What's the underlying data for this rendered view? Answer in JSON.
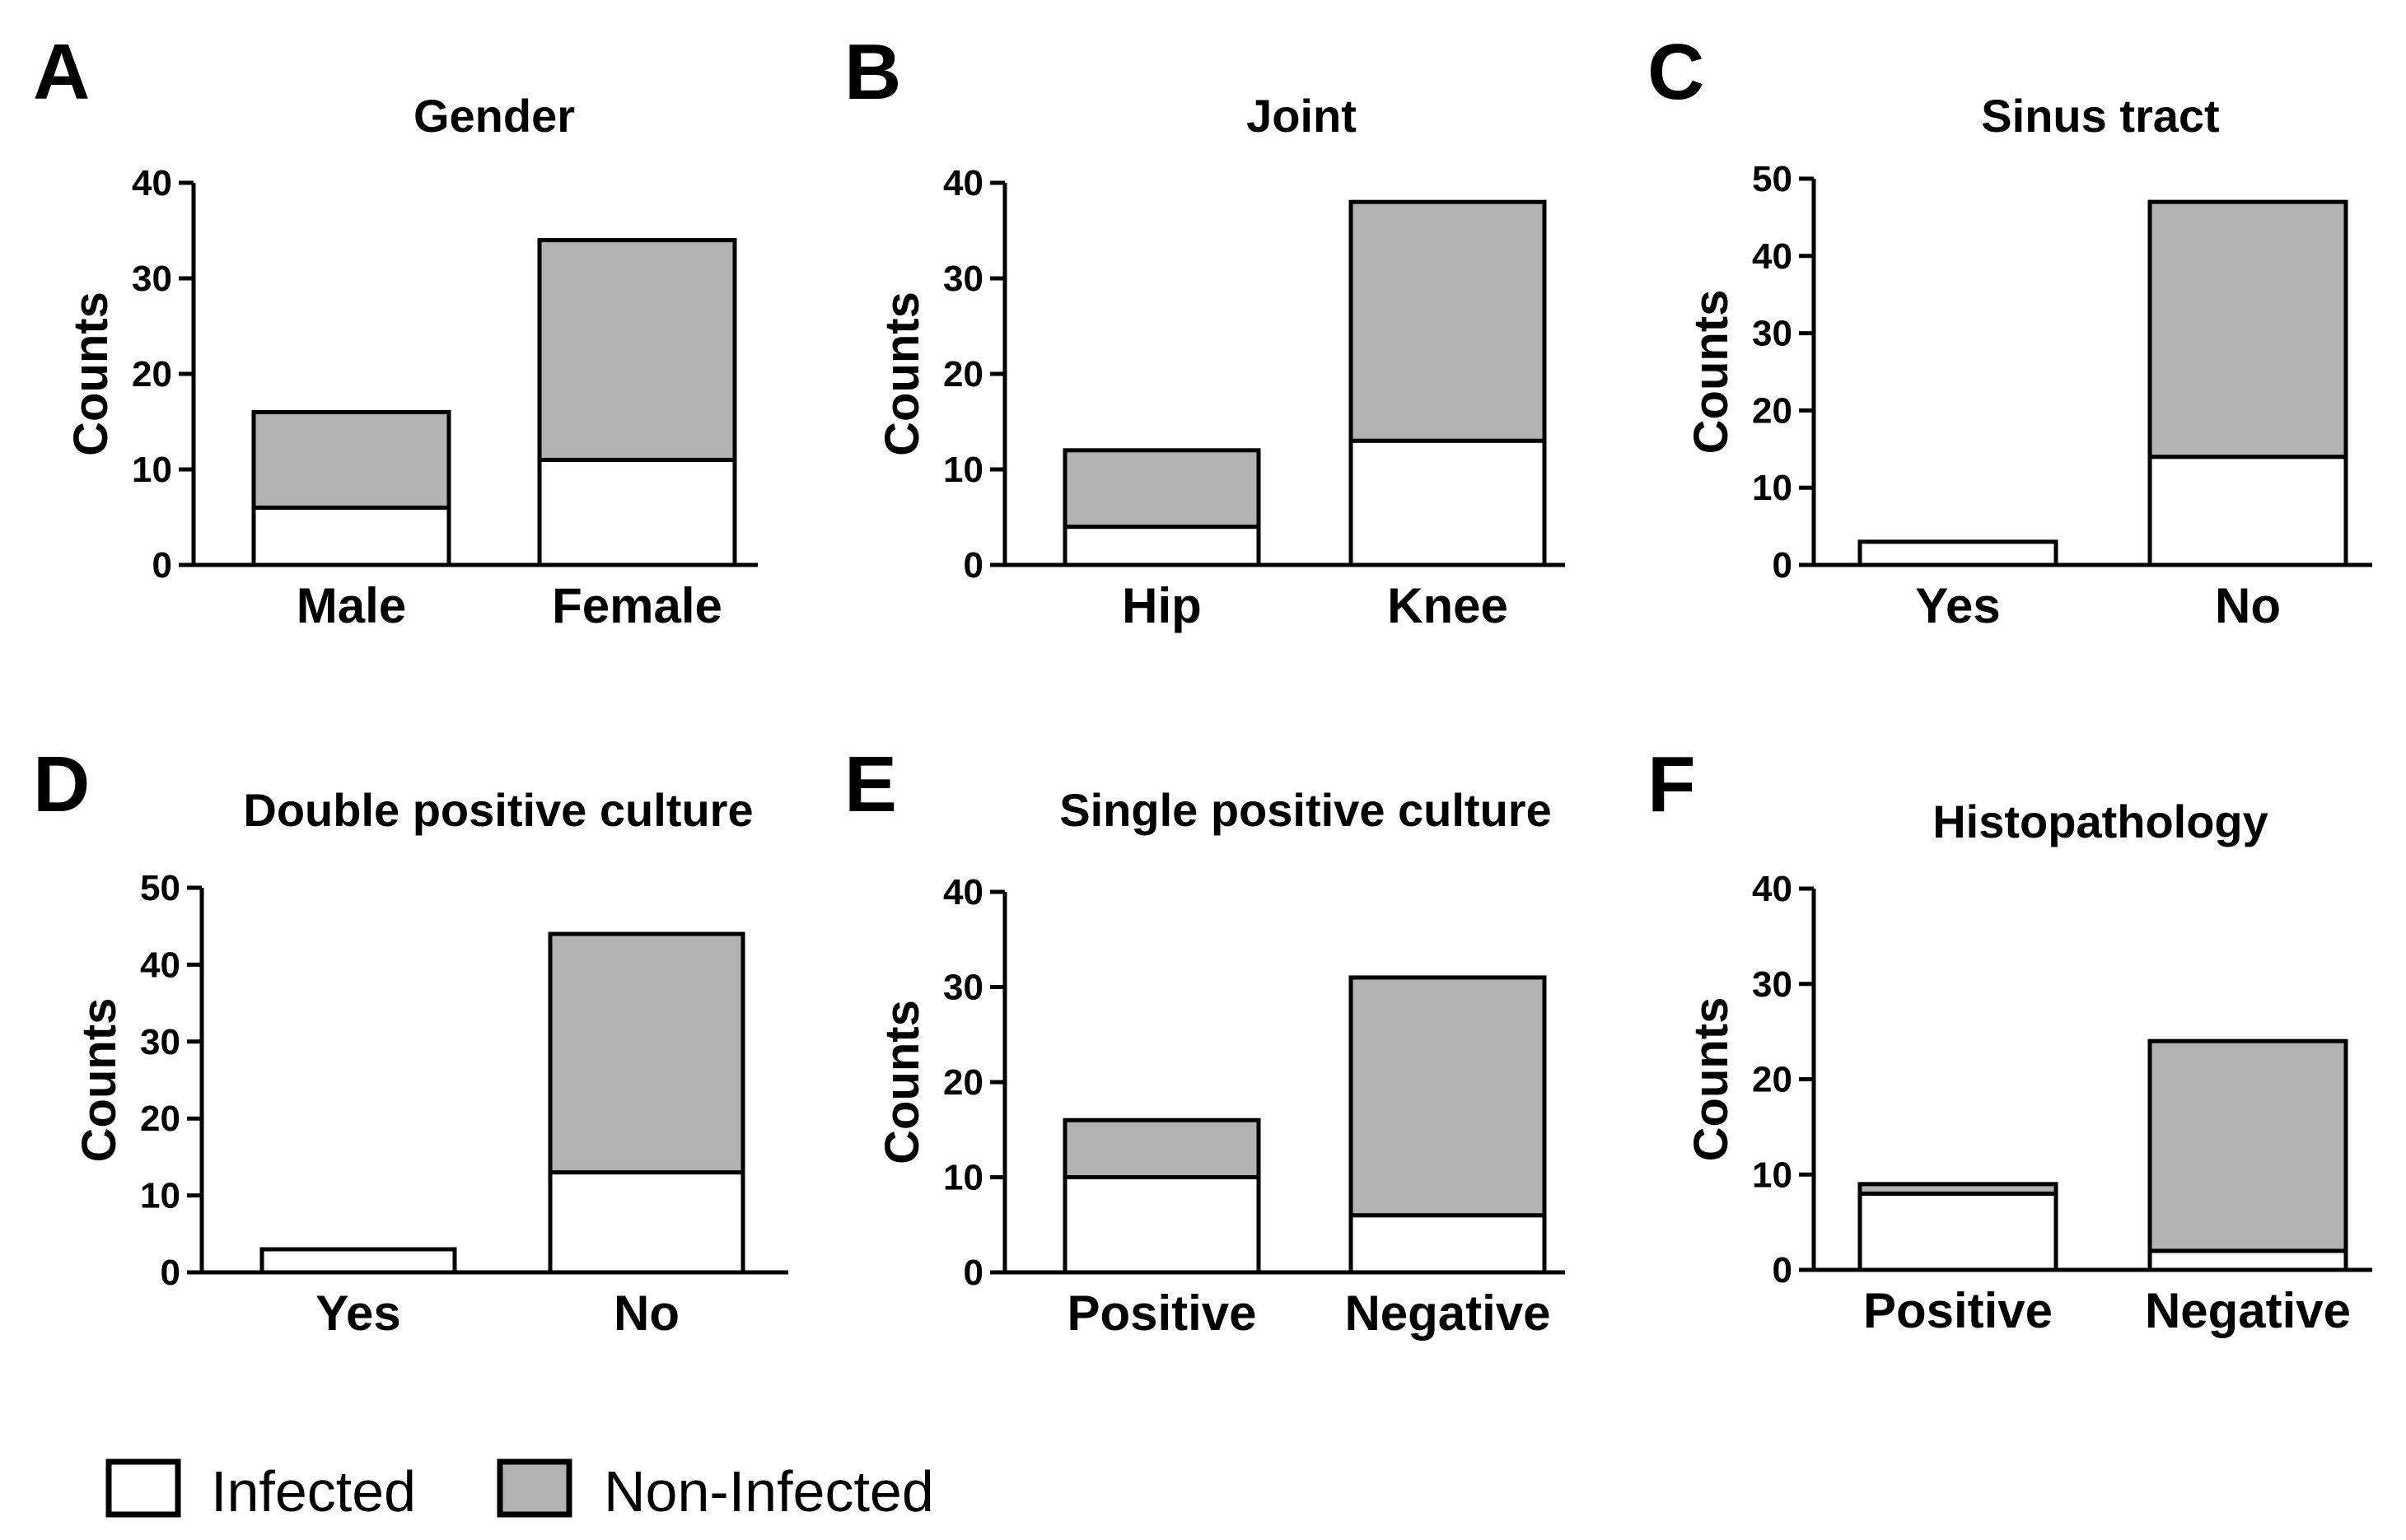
{
  "colors": {
    "infected": "#ffffff",
    "non_infected": "#b2b2b2",
    "stroke": "#000000"
  },
  "legend": [
    {
      "label": "Infected",
      "series": "infected"
    },
    {
      "label": "Non-Infected",
      "series": "non_infected"
    }
  ],
  "chart_data": [
    {
      "type": "bar",
      "stacked": true,
      "panel": "A",
      "title": "Gender",
      "ylabel": "Counts",
      "ylim": [
        0,
        40
      ],
      "yticks": [
        "0",
        "10",
        "20",
        "30",
        "40"
      ],
      "categories": [
        "Male",
        "Female"
      ],
      "series": [
        {
          "name": "Infected",
          "values": [
            6,
            11
          ]
        },
        {
          "name": "Non-Infected",
          "values": [
            10,
            23
          ]
        }
      ]
    },
    {
      "type": "bar",
      "stacked": true,
      "panel": "B",
      "title": "Joint",
      "ylabel": "Counts",
      "ylim": [
        0,
        40
      ],
      "yticks": [
        "0",
        "10",
        "20",
        "30",
        "40"
      ],
      "categories": [
        "Hip",
        "Knee"
      ],
      "series": [
        {
          "name": "Infected",
          "values": [
            4,
            13
          ]
        },
        {
          "name": "Non-Infected",
          "values": [
            8,
            25
          ]
        }
      ]
    },
    {
      "type": "bar",
      "stacked": true,
      "panel": "C",
      "title": "Sinus tract",
      "ylabel": "Counts",
      "ylim": [
        0,
        50
      ],
      "yticks": [
        "0",
        "10",
        "20",
        "30",
        "40",
        "50"
      ],
      "categories": [
        "Yes",
        "No"
      ],
      "series": [
        {
          "name": "Infected",
          "values": [
            3,
            14
          ]
        },
        {
          "name": "Non-Infected",
          "values": [
            0,
            33
          ]
        }
      ]
    },
    {
      "type": "bar",
      "stacked": true,
      "panel": "D",
      "title": "Double positive culture",
      "ylabel": "Counts",
      "ylim": [
        0,
        50
      ],
      "yticks": [
        "0",
        "10",
        "20",
        "30",
        "40",
        "50"
      ],
      "categories": [
        "Yes",
        "No"
      ],
      "series": [
        {
          "name": "Infected",
          "values": [
            3,
            13
          ]
        },
        {
          "name": "Non-Infected",
          "values": [
            0,
            31
          ]
        }
      ]
    },
    {
      "type": "bar",
      "stacked": true,
      "panel": "E",
      "title": "Single positive culture",
      "ylabel": "Counts",
      "ylim": [
        0,
        40
      ],
      "yticks": [
        "0",
        "10",
        "20",
        "30",
        "40"
      ],
      "categories": [
        "Positive",
        "Negative"
      ],
      "series": [
        {
          "name": "Infected",
          "values": [
            10,
            6
          ]
        },
        {
          "name": "Non-Infected",
          "values": [
            6,
            25
          ]
        }
      ]
    },
    {
      "type": "bar",
      "stacked": true,
      "panel": "F",
      "title": "Histopathology",
      "ylabel": "Counts",
      "ylim": [
        0,
        40
      ],
      "yticks": [
        "0",
        "10",
        "20",
        "30",
        "40"
      ],
      "categories": [
        "Positive",
        "Negative"
      ],
      "series": [
        {
          "name": "Infected",
          "values": [
            8,
            2
          ]
        },
        {
          "name": "Non-Infected",
          "values": [
            1,
            22
          ]
        }
      ]
    }
  ]
}
